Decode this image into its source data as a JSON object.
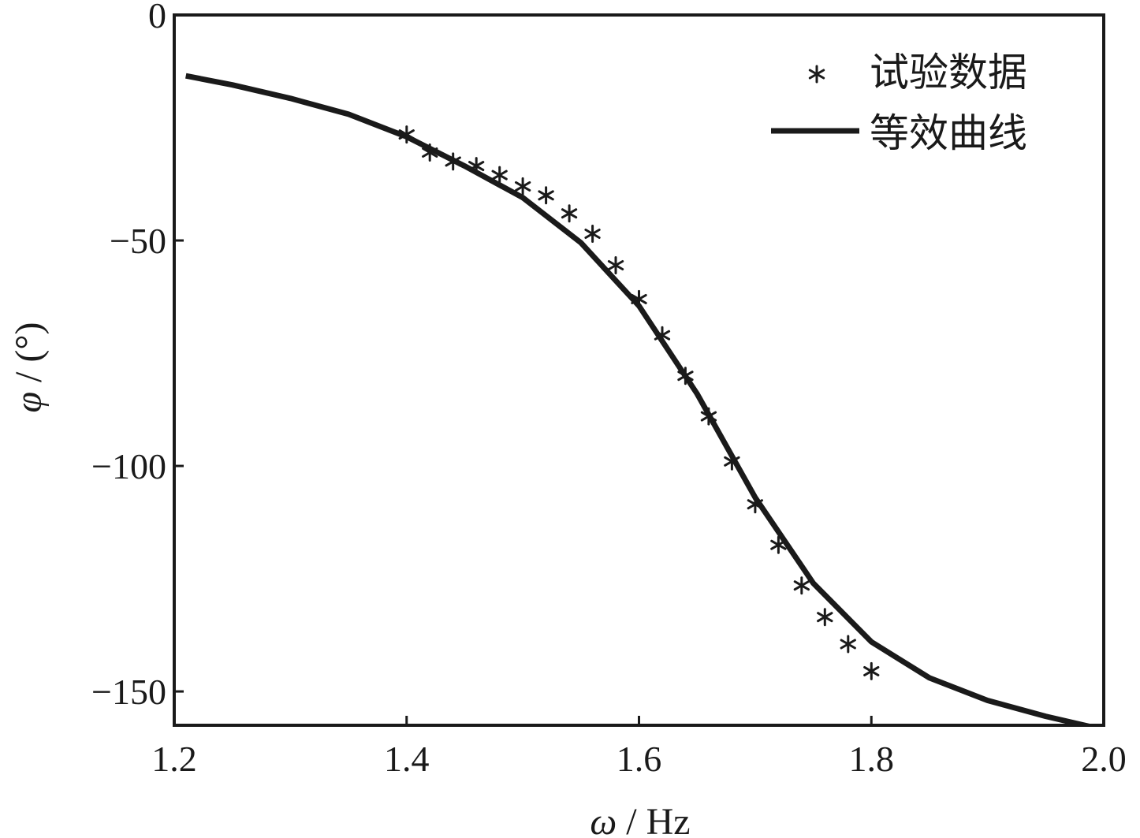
{
  "chart_data": {
    "type": "line",
    "xlabel": {
      "symbol": "ω",
      "rest": " / Hz"
    },
    "ylabel": {
      "symbol": "φ",
      "rest": " / (°)"
    },
    "xlim": [
      1.2,
      2.0
    ],
    "ylim": [
      -157.5,
      0
    ],
    "x_ticks": [
      1.2,
      1.4,
      1.6,
      1.8,
      2.0
    ],
    "x_tick_labels": [
      "1.2",
      "1.4",
      "1.6",
      "1.8",
      "2.0"
    ],
    "y_ticks": [
      0,
      -50,
      -100,
      -150
    ],
    "y_tick_labels": [
      "0",
      "−50",
      "−100",
      "−150"
    ],
    "grid": false,
    "legend_position": "top-right",
    "series": [
      {
        "name": "试验数据",
        "kind": "scatter",
        "marker": "asterisk",
        "color": "#1a1a1a",
        "x": [
          1.4,
          1.42,
          1.44,
          1.46,
          1.48,
          1.5,
          1.52,
          1.54,
          1.56,
          1.58,
          1.6,
          1.62,
          1.64,
          1.66,
          1.68,
          1.7,
          1.72,
          1.74,
          1.76,
          1.78,
          1.8
        ],
        "y": [
          -26.5,
          -30.5,
          -32.5,
          -33.5,
          -35.5,
          -38,
          -40,
          -44,
          -48.5,
          -55.5,
          -63,
          -71,
          -80,
          -89,
          -99,
          -108.5,
          -117.5,
          -126.5,
          -133.5,
          -139.5,
          -145.5
        ]
      },
      {
        "name": "等效曲线",
        "kind": "line",
        "color": "#1a1a1a",
        "x": [
          1.21,
          1.25,
          1.3,
          1.35,
          1.4,
          1.45,
          1.5,
          1.55,
          1.6,
          1.65,
          1.7,
          1.75,
          1.8,
          1.85,
          1.9,
          1.95,
          2.0
        ],
        "y": [
          -13.5,
          -15.5,
          -18.5,
          -22,
          -27,
          -33.5,
          -40.5,
          -50.5,
          -64.5,
          -84,
          -107,
          -126,
          -139,
          -147,
          -152,
          -155.5,
          -158.5
        ]
      }
    ]
  }
}
